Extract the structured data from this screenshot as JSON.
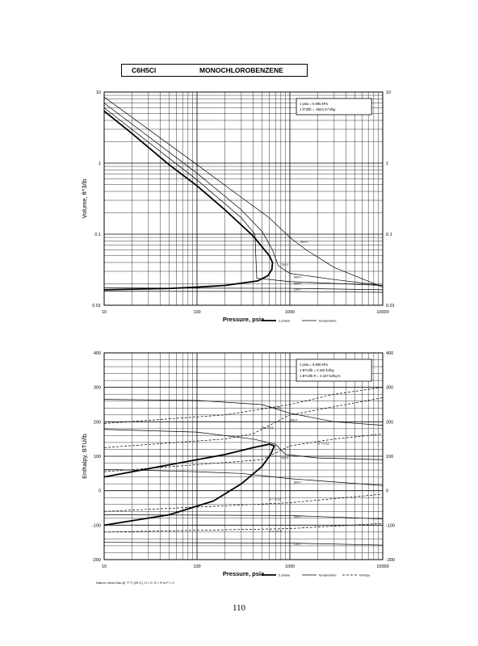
{
  "header": {
    "formula": "C6H5Cl",
    "name": "MONOCHLOROBENZENE"
  },
  "page_number": "110",
  "chart_data": [
    {
      "type": "line",
      "title": "",
      "xlabel": "Pressure,  psia",
      "ylabel": "Volume, ft^3/lb",
      "x_scale": "log",
      "y_scale": "log",
      "xlim": [
        10,
        10000
      ],
      "ylim": [
        0.01,
        10
      ],
      "x_ticks": [
        "10",
        "100",
        "1000",
        "10000"
      ],
      "y_ticks_left": [
        "10",
        "1",
        "0.1",
        "0.01"
      ],
      "y_ticks_right": [
        "10",
        "1",
        "0.1",
        "0.01"
      ],
      "grid": true,
      "conversion_note": [
        "1 psia = 6.895 kPa",
        "1 ft^3/lb = .0624 m^3/kg"
      ],
      "legend": [
        "2 phase",
        "temperature"
      ],
      "legend_position": "bottom-right",
      "isotherm_labels": [
        "900 F",
        "700 F",
        "500 F",
        "300 F",
        "100 F"
      ],
      "series": [
        {
          "name": "2 phase",
          "style": "thick",
          "points": [
            [
              10,
              5.4
            ],
            [
              20,
              2.6
            ],
            [
              50,
              0.95
            ],
            [
              100,
              0.48
            ],
            [
              200,
              0.22
            ],
            [
              400,
              0.095
            ],
            [
              600,
              0.05
            ],
            [
              650,
              0.04
            ],
            [
              640,
              0.032
            ],
            [
              580,
              0.026
            ],
            [
              450,
              0.022
            ],
            [
              200,
              0.019
            ],
            [
              100,
              0.018
            ],
            [
              50,
              0.0172
            ],
            [
              10,
              0.0165
            ]
          ]
        },
        {
          "name": "900 F",
          "style": "thin",
          "points": [
            [
              10,
              8.5
            ],
            [
              100,
              0.95
            ],
            [
              300,
              0.33
            ],
            [
              600,
              0.17
            ],
            [
              1000,
              0.09
            ],
            [
              1500,
              0.06
            ],
            [
              3000,
              0.034
            ],
            [
              10000,
              0.018
            ]
          ]
        },
        {
          "name": "700 F",
          "style": "thin",
          "points": [
            [
              10,
              7
            ],
            [
              100,
              0.72
            ],
            [
              300,
              0.22
            ],
            [
              500,
              0.11
            ],
            [
              650,
              0.06
            ],
            [
              750,
              0.036
            ],
            [
              1000,
              0.028
            ],
            [
              3000,
              0.023
            ],
            [
              10000,
              0.019
            ]
          ]
        },
        {
          "name": "500 F",
          "style": "thin",
          "points": [
            [
              10,
              6
            ],
            [
              100,
              0.58
            ],
            [
              300,
              0.17
            ],
            [
              420,
              0.1
            ],
            [
              440,
              0.024
            ],
            [
              1000,
              0.0215
            ],
            [
              10000,
              0.019
            ]
          ]
        },
        {
          "name": "300 F",
          "style": "thin",
          "points": [
            [
              10,
              0.0175
            ],
            [
              1000,
              0.0173
            ],
            [
              10000,
              0.0165
            ]
          ]
        },
        {
          "name": "100 F",
          "style": "thin",
          "points": [
            [
              10,
              0.0157
            ],
            [
              1000,
              0.0156
            ],
            [
              10000,
              0.0152
            ]
          ]
        }
      ]
    },
    {
      "type": "line",
      "title": "",
      "xlabel": "Pressure,  psia",
      "ylabel": "Enthalpy, BTU/lb",
      "x_scale": "log",
      "xlim": [
        10,
        10000
      ],
      "ylim": [
        -200,
        400
      ],
      "x_ticks": [
        "10",
        "100",
        "1000",
        "10000"
      ],
      "y_ticks_left": [
        "400",
        "300",
        "200",
        "100",
        "0",
        "-100",
        "-200"
      ],
      "y_ticks_right": [
        "400",
        "300",
        "200",
        "100",
        "0",
        "-100",
        "-200"
      ],
      "grid": true,
      "conversion_note": [
        "1 psia = 6.895 kPa",
        "1 BTU/lb = 2.326 kJ/kg",
        "1 BTU/lb R = 4.187 kJ/kg K"
      ],
      "legend": [
        "2 phase",
        "temperature",
        "entropy"
      ],
      "legend_position": "bottom-right",
      "footnote": "Datum: Ideal Gas @ 77 F (25 C), H = 0,  S = R ln P = 0",
      "isotherm_labels": [
        "900 F",
        "700 F",
        "500 F",
        "300 F",
        "100 F"
      ],
      "entropy_labels": [
        "S = 0.21",
        "S = 0.16",
        "S = 0.11",
        "S = 0.02",
        "S = -0.15"
      ],
      "series": [
        {
          "name": "2 phase",
          "style": "thick",
          "points": [
            [
              10,
              40
            ],
            [
              20,
              55
            ],
            [
              50,
              75
            ],
            [
              100,
              90
            ],
            [
              200,
              105
            ],
            [
              400,
              125
            ],
            [
              600,
              135
            ],
            [
              680,
              130
            ],
            [
              620,
              105
            ],
            [
              500,
              70
            ],
            [
              300,
              20
            ],
            [
              150,
              -30
            ],
            [
              50,
              -70
            ],
            [
              10,
              -100
            ]
          ]
        },
        {
          "name": "900 F",
          "style": "thin",
          "points": [
            [
              10,
              265
            ],
            [
              100,
              262
            ],
            [
              500,
              250
            ],
            [
              1000,
              225
            ],
            [
              3000,
              200
            ],
            [
              10000,
              190
            ]
          ]
        },
        {
          "name": "700 F",
          "style": "thin",
          "points": [
            [
              10,
              178
            ],
            [
              100,
              170
            ],
            [
              400,
              150
            ],
            [
              700,
              135
            ],
            [
              900,
              105
            ],
            [
              2000,
              95
            ],
            [
              10000,
              90
            ]
          ]
        },
        {
          "name": "500 F",
          "style": "thin",
          "points": [
            [
              10,
              62
            ],
            [
              100,
              55
            ],
            [
              300,
              50
            ],
            [
              1000,
              35
            ],
            [
              10000,
              15
            ]
          ]
        },
        {
          "name": "300 F",
          "style": "thin",
          "points": [
            [
              10,
              -70
            ],
            [
              1000,
              -72
            ],
            [
              10000,
              -82
            ]
          ]
        },
        {
          "name": "100 F",
          "style": "thin",
          "points": [
            [
              10,
              -150
            ],
            [
              1000,
              -152
            ],
            [
              10000,
              -158
            ]
          ]
        },
        {
          "name": "S = 0.21",
          "style": "dashed",
          "points": [
            [
              10,
              195
            ],
            [
              200,
              220
            ],
            [
              1000,
              250
            ],
            [
              3000,
              280
            ],
            [
              10000,
              300
            ]
          ]
        },
        {
          "name": "S = 0.16",
          "style": "dashed",
          "points": [
            [
              10,
              125
            ],
            [
              200,
              150
            ],
            [
              400,
              165
            ],
            [
              1000,
              220
            ],
            [
              10000,
              270
            ]
          ]
        },
        {
          "name": "S = 0.11",
          "style": "dashed",
          "points": [
            [
              10,
              55
            ],
            [
              500,
              90
            ],
            [
              1000,
              130
            ],
            [
              3000,
              150
            ],
            [
              10000,
              165
            ]
          ]
        },
        {
          "name": "S = 0.02",
          "style": "dashed",
          "points": [
            [
              10,
              -60
            ],
            [
              1000,
              -35
            ],
            [
              10000,
              -10
            ]
          ]
        },
        {
          "name": "S = -0.15",
          "style": "dashed",
          "points": [
            [
              10,
              -120
            ],
            [
              1000,
              -110
            ],
            [
              10000,
              -95
            ]
          ]
        }
      ]
    }
  ]
}
